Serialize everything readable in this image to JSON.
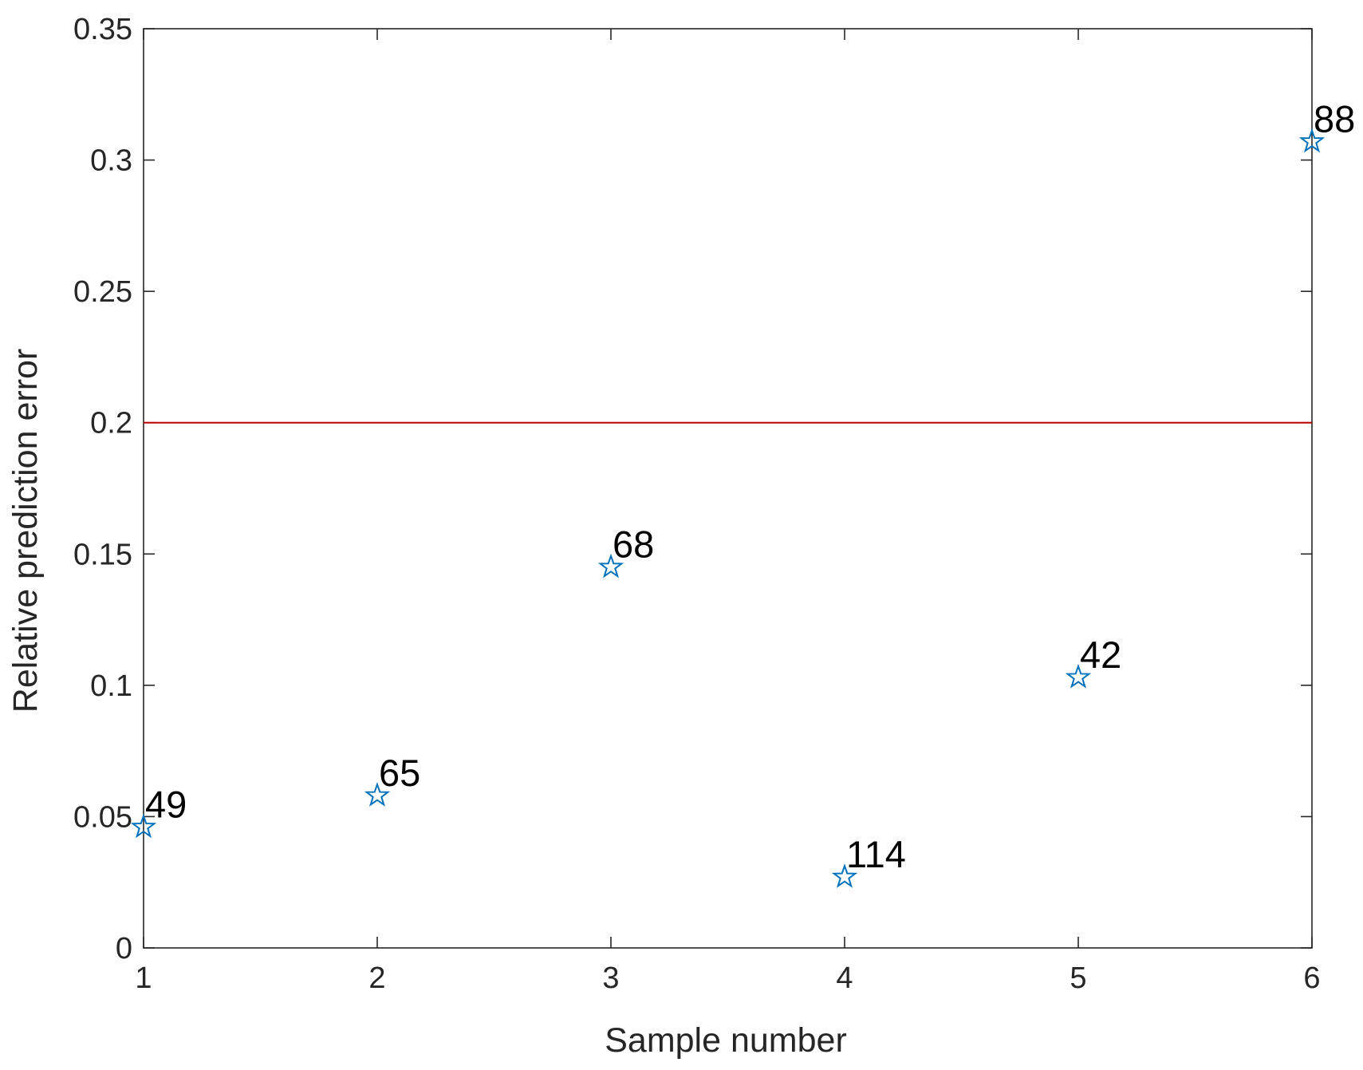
{
  "chart_data": {
    "type": "scatter",
    "xlabel": "Sample number",
    "ylabel": "Relative prediction error",
    "xlim": [
      1,
      6
    ],
    "ylim": [
      0,
      0.35
    ],
    "xticks": [
      "1",
      "2",
      "3",
      "4",
      "5",
      "6"
    ],
    "yticks": [
      "0",
      "0.05",
      "0.1",
      "0.15",
      "0.2",
      "0.25",
      "0.3",
      "0.35"
    ],
    "grid": false,
    "marker": "pentagram",
    "marker_color": "#0072BD",
    "reference_line": {
      "y": 0.2,
      "color": "#C00000"
    },
    "points": [
      {
        "x": 1,
        "y": 0.046,
        "label": "49"
      },
      {
        "x": 2,
        "y": 0.058,
        "label": "65"
      },
      {
        "x": 3,
        "y": 0.145,
        "label": "68"
      },
      {
        "x": 4,
        "y": 0.027,
        "label": "114"
      },
      {
        "x": 5,
        "y": 0.103,
        "label": "42"
      },
      {
        "x": 6,
        "y": 0.307,
        "label": "88"
      }
    ]
  }
}
